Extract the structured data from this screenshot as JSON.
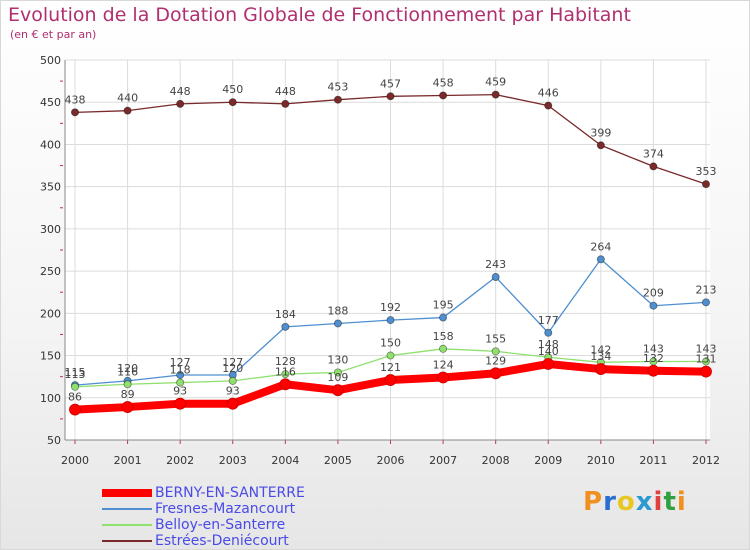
{
  "chart_data": {
    "type": "line",
    "title": "Evolution de la Dotation Globale de Fonctionnement par Habitant",
    "subtitle": "(en € et par an)",
    "xlabel": "",
    "ylabel": "",
    "ylim": [
      50,
      500
    ],
    "yticks": [
      50,
      100,
      150,
      200,
      250,
      300,
      350,
      400,
      450,
      500
    ],
    "categories": [
      "2000",
      "2001",
      "2002",
      "2003",
      "2004",
      "2005",
      "2006",
      "2007",
      "2008",
      "2009",
      "2010",
      "2011",
      "2012"
    ],
    "grid": true,
    "legend_position": "bottom-left",
    "series": [
      {
        "name": "BERNY-EN-SANTERRE",
        "color": "#ff0000",
        "values": [
          86,
          89,
          93,
          93,
          116,
          109,
          121,
          124,
          129,
          140,
          134,
          132,
          131
        ]
      },
      {
        "name": "Fresnes-Mazancourt",
        "color": "#4f8fcf",
        "values": [
          115,
          120,
          127,
          127,
          184,
          188,
          192,
          195,
          243,
          177,
          264,
          209,
          213
        ]
      },
      {
        "name": "Belloy-en-Santerre",
        "color": "#90e070",
        "values": [
          113,
          116,
          118,
          120,
          128,
          130,
          150,
          158,
          155,
          148,
          142,
          143,
          143
        ]
      },
      {
        "name": "Estrées-Deniécourt",
        "color": "#7a2a2a",
        "values": [
          438,
          440,
          448,
          450,
          448,
          453,
          457,
          458,
          459,
          446,
          399,
          374,
          353
        ]
      }
    ]
  },
  "logo": {
    "text": "Proxiti",
    "colors": [
      "#f09020",
      "#2a6fd0",
      "#e8c820",
      "#2a9ad0",
      "#e04040",
      "#30a040",
      "#f09020"
    ]
  }
}
